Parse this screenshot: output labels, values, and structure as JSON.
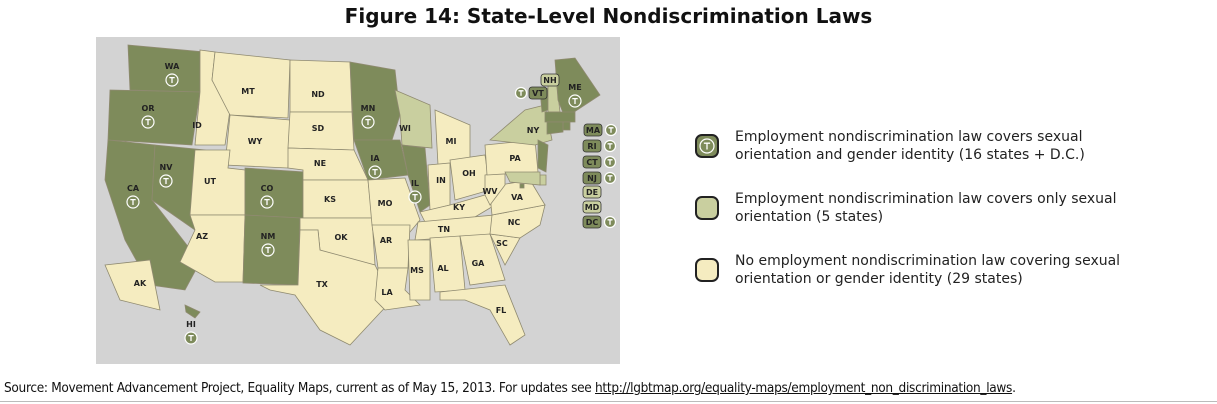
{
  "map": {
    "title": "Figure 14: State-Level Nondiscrimination Laws",
    "legend": [
      {
        "label": "Employment nondiscrimination law covers sexual orientation and gender identity (16 states + D.C.)",
        "color": "#7e8b5b"
      },
      {
        "label": "Employment nondiscrimination law covers only sexual orientation (5 states)",
        "color": "#c9cf9f"
      },
      {
        "label": "No employment nondiscrimination law covering sexual orientation or gender identity (29 states)",
        "color": "#f5ecc0"
      }
    ],
    "states": [
      {
        "label": "WA",
        "category": 0
      },
      {
        "label": "OR",
        "category": 0
      },
      {
        "label": "CA",
        "category": 0
      },
      {
        "label": "NV",
        "category": 0
      },
      {
        "label": "ID",
        "category": 2
      },
      {
        "label": "MT",
        "category": 2
      },
      {
        "label": "WY",
        "category": 2
      },
      {
        "label": "UT",
        "category": 2
      },
      {
        "label": "AZ",
        "category": 2
      },
      {
        "label": "CO",
        "category": 0
      },
      {
        "label": "NM",
        "category": 0
      },
      {
        "label": "ND",
        "category": 2
      },
      {
        "label": "SD",
        "category": 2
      },
      {
        "label": "NE",
        "category": 2
      },
      {
        "label": "KS",
        "category": 2
      },
      {
        "label": "OK",
        "category": 2
      },
      {
        "label": "TX",
        "category": 2
      },
      {
        "label": "MN",
        "category": 0
      },
      {
        "label": "IA",
        "category": 0
      },
      {
        "label": "MO",
        "category": 2
      },
      {
        "label": "AR",
        "category": 2
      },
      {
        "label": "LA",
        "category": 2
      },
      {
        "label": "WI",
        "category": 1
      },
      {
        "label": "IL",
        "category": 0
      },
      {
        "label": "MI",
        "category": 2
      },
      {
        "label": "IN",
        "category": 2
      },
      {
        "label": "OH",
        "category": 2
      },
      {
        "label": "KY",
        "category": 2
      },
      {
        "label": "TN",
        "category": 2
      },
      {
        "label": "MS",
        "category": 2
      },
      {
        "label": "AL",
        "category": 2
      },
      {
        "label": "GA",
        "category": 2
      },
      {
        "label": "FL",
        "category": 2
      },
      {
        "label": "SC",
        "category": 2
      },
      {
        "label": "NC",
        "category": 2
      },
      {
        "label": "VA",
        "category": 2
      },
      {
        "label": "WV",
        "category": 2
      },
      {
        "label": "PA",
        "category": 2
      },
      {
        "label": "NY",
        "category": 1
      },
      {
        "label": "VT",
        "category": 0
      },
      {
        "label": "NH",
        "category": 1
      },
      {
        "label": "ME",
        "category": 0
      },
      {
        "label": "MA",
        "category": 0
      },
      {
        "label": "RI",
        "category": 0
      },
      {
        "label": "CT",
        "category": 0
      },
      {
        "label": "NJ",
        "category": 0
      },
      {
        "label": "DE",
        "category": 1
      },
      {
        "label": "MD",
        "category": 1
      },
      {
        "label": "DC",
        "category": 0
      },
      {
        "label": "AK",
        "category": 2
      },
      {
        "label": "HI",
        "category": 0
      }
    ],
    "source": {
      "text": "Source: Movement Advancement Project, Equality Maps, current as of May 15, 2013. For updates see",
      "link": "http://lgbtmap.org/equality-maps/employment_non_discrimination_laws",
      "end": "."
    }
  }
}
